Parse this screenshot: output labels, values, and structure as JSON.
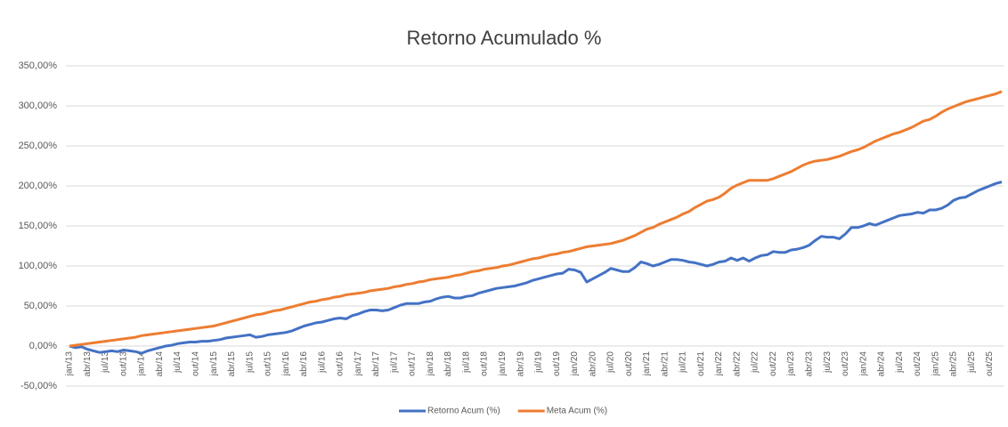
{
  "chart_data": {
    "type": "line",
    "title": "Retorno Acumulado %",
    "categories": [
      "jan/13",
      null,
      null,
      "abr/13",
      null,
      null,
      "jul/13",
      null,
      null,
      "out/13",
      null,
      null,
      "jan/14",
      null,
      null,
      "abr/14",
      null,
      null,
      "jul/14",
      null,
      null,
      "out/14",
      null,
      null,
      "jan/15",
      null,
      null,
      "abr/15",
      null,
      null,
      "jul/15",
      null,
      null,
      "out/15",
      null,
      null,
      "jan/16",
      null,
      null,
      "abr/16",
      null,
      null,
      "jul/16",
      null,
      null,
      "out/16",
      null,
      null,
      "jan/17",
      null,
      null,
      "abr/17",
      null,
      null,
      "jul/17",
      null,
      null,
      "out/17",
      null,
      null,
      "jan/18",
      null,
      null,
      "abr/18",
      null,
      null,
      "jul/18",
      null,
      null,
      "out/18",
      null,
      null,
      "jan/19",
      null,
      null,
      "abr/19",
      null,
      null,
      "jul/19",
      null,
      null,
      "out/19",
      null,
      null,
      "jan/20",
      null,
      null,
      "abr/20",
      null,
      null,
      "jul/20",
      null,
      null,
      "out/20",
      null,
      null,
      "jan/21",
      null,
      null,
      "abr/21",
      null,
      null,
      "jul/21",
      null,
      null,
      "out/21",
      null,
      null,
      "jan/22",
      null,
      null,
      "abr/22",
      null,
      null,
      "jul/22",
      null,
      null,
      "out/22",
      null,
      null,
      "jan/23",
      null,
      null,
      "abr/23",
      null,
      null,
      "jul/23",
      null,
      null,
      "out/23",
      null,
      null,
      "jan/24",
      null,
      null,
      "abr/24",
      null,
      null,
      "jul/24",
      null,
      null,
      "out/24",
      null,
      null,
      "jan/25",
      null,
      null,
      "abr/25",
      null,
      null,
      "jul/25",
      null,
      null,
      "out/25",
      null,
      null
    ],
    "series": [
      {
        "name": "Retorno Acum (%)",
        "color": "#4472c4",
        "values": [
          0,
          -2,
          -1,
          -4,
          -6,
          -8,
          -7,
          -6,
          -7,
          -5,
          -6,
          -7,
          -9,
          -6,
          -4,
          -2,
          0,
          1,
          3,
          4,
          5,
          5,
          6,
          6,
          7,
          8,
          10,
          11,
          12,
          13,
          14,
          11,
          12,
          14,
          15,
          16,
          17,
          19,
          22,
          25,
          27,
          29,
          30,
          32,
          34,
          35,
          34,
          38,
          40,
          43,
          45,
          45,
          44,
          45,
          48,
          51,
          53,
          53,
          53,
          55,
          56,
          59,
          61,
          62,
          60,
          60,
          62,
          63,
          66,
          68,
          70,
          72,
          73,
          74,
          75,
          77,
          79,
          82,
          84,
          86,
          88,
          90,
          91,
          96,
          95,
          92,
          80,
          84,
          88,
          92,
          97,
          95,
          93,
          93,
          98,
          105,
          103,
          100,
          102,
          105,
          108,
          108,
          107,
          105,
          104,
          102,
          100,
          102,
          105,
          106,
          110,
          107,
          110,
          106,
          110,
          113,
          114,
          118,
          117,
          117,
          120,
          121,
          123,
          126,
          132,
          137,
          136,
          136,
          134,
          140,
          148,
          148,
          150,
          153,
          151,
          154,
          157,
          160,
          163,
          164,
          165,
          167,
          166,
          170,
          170,
          172,
          176,
          182,
          185,
          186,
          190,
          194,
          197,
          200,
          203,
          205
        ]
      },
      {
        "name": "Meta Acum (%)",
        "color": "#ed7d31",
        "values": [
          0,
          1,
          2,
          3,
          4,
          5,
          6,
          7,
          8,
          9,
          10,
          11,
          13,
          14,
          15,
          16,
          17,
          18,
          19,
          20,
          21,
          22,
          23,
          24,
          25,
          27,
          29,
          31,
          33,
          35,
          37,
          39,
          40,
          42,
          44,
          45,
          47,
          49,
          51,
          53,
          55,
          56,
          58,
          59,
          61,
          62,
          64,
          65,
          66,
          67,
          69,
          70,
          71,
          72,
          74,
          75,
          77,
          78,
          80,
          81,
          83,
          84,
          85,
          86,
          88,
          89,
          91,
          93,
          94,
          96,
          97,
          98,
          100,
          101,
          103,
          105,
          107,
          109,
          110,
          112,
          114,
          115,
          117,
          118,
          120,
          122,
          124,
          125,
          126,
          127,
          128,
          130,
          132,
          135,
          138,
          142,
          146,
          148,
          152,
          155,
          158,
          161,
          165,
          168,
          173,
          177,
          181,
          183,
          186,
          191,
          197,
          201,
          204,
          207,
          207,
          207,
          207,
          209,
          212,
          215,
          218,
          222,
          226,
          229,
          231,
          232,
          233,
          235,
          237,
          240,
          243,
          245,
          248,
          252,
          256,
          259,
          262,
          265,
          267,
          270,
          273,
          277,
          281,
          283,
          287,
          292,
          296,
          299,
          302,
          305,
          307,
          309,
          311,
          313,
          315,
          318
        ]
      }
    ],
    "ylim": [
      -50,
      350
    ],
    "yticks": [
      {
        "value": -50,
        "label": "-50,00%"
      },
      {
        "value": 0,
        "label": "0,00%"
      },
      {
        "value": 50,
        "label": "50,00%"
      },
      {
        "value": 100,
        "label": "100,00%"
      },
      {
        "value": 150,
        "label": "150,00%"
      },
      {
        "value": 200,
        "label": "200,00%"
      },
      {
        "value": 250,
        "label": "250,00%"
      },
      {
        "value": 300,
        "label": "300,00%"
      },
      {
        "value": 350,
        "label": "350,00%"
      }
    ],
    "grid": true,
    "legend": "bottom"
  }
}
